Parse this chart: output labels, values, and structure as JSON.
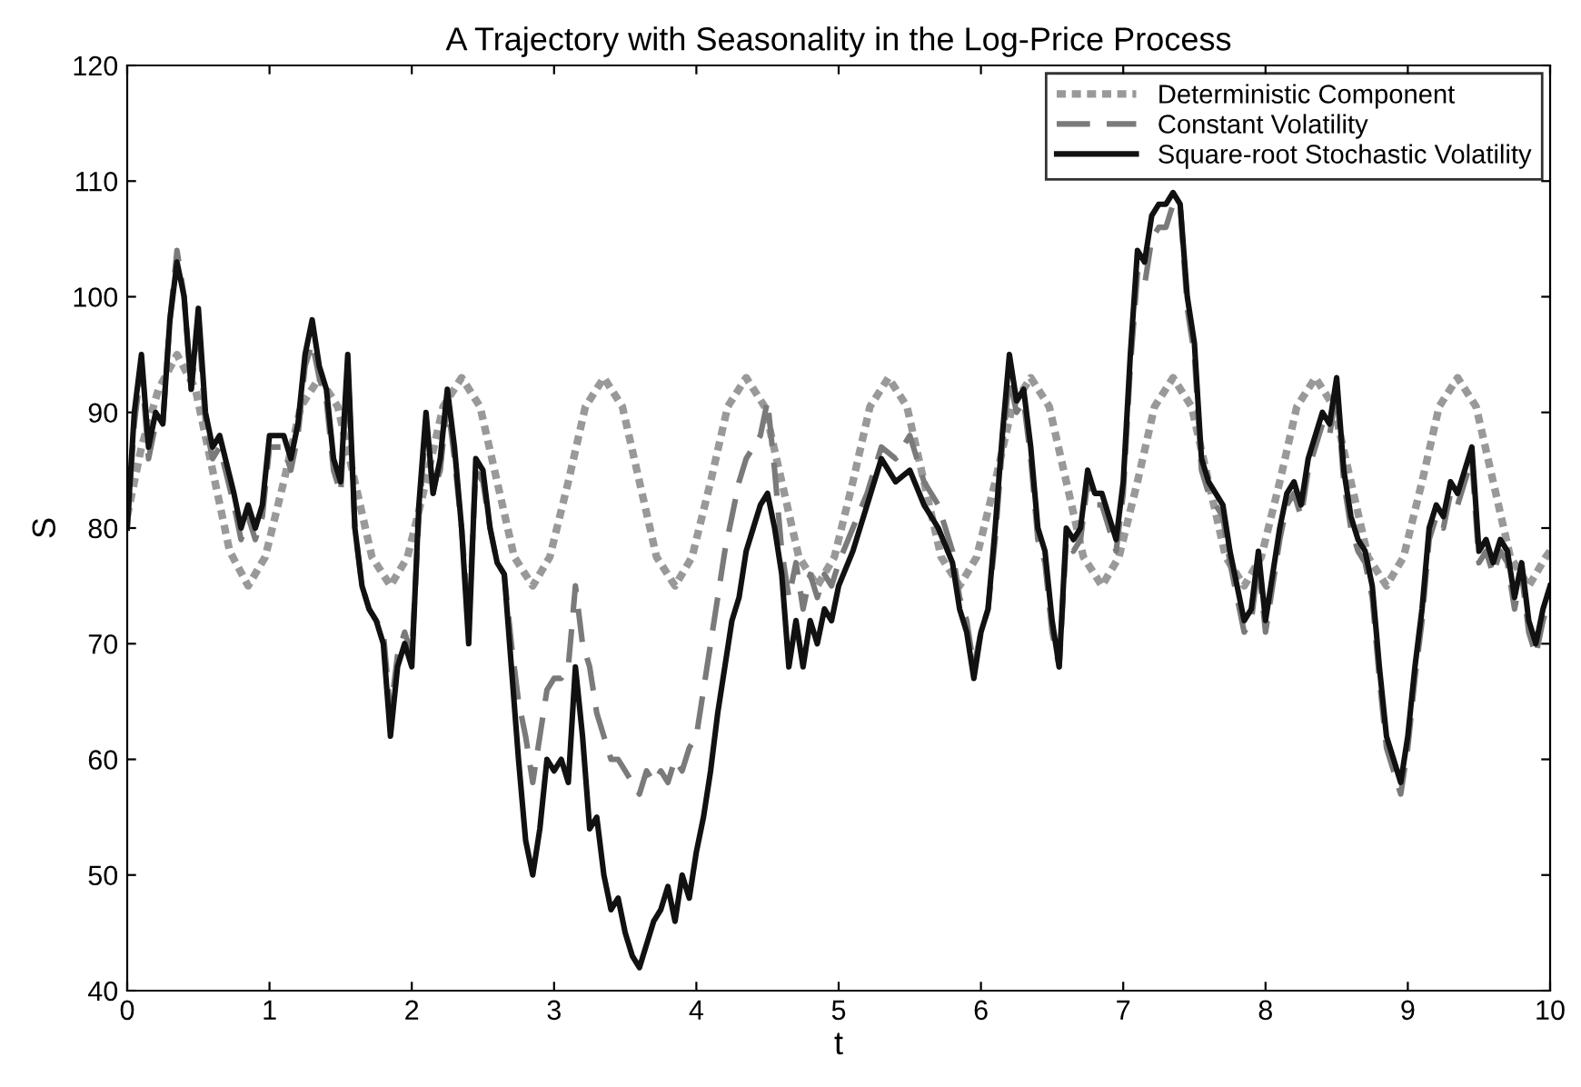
{
  "chart_data": {
    "type": "line",
    "title": "A Trajectory with Seasonality in the Log-Price Process",
    "xlabel": "t",
    "ylabel": "S",
    "xlim": [
      0,
      10
    ],
    "ylim": [
      40,
      120
    ],
    "xticks": [
      0,
      1,
      2,
      3,
      4,
      5,
      6,
      7,
      8,
      9,
      10
    ],
    "yticks": [
      40,
      50,
      60,
      70,
      80,
      90,
      100,
      110,
      120
    ],
    "grid": false,
    "legend": "top right",
    "marker": "none",
    "series": [
      {
        "name": "Deterministic Component",
        "color": "#999999",
        "line_style": "dotted",
        "x": [
          0,
          0.1,
          0.22,
          0.35,
          0.48,
          0.6,
          0.72,
          0.85,
          0.97,
          1.1,
          1.22,
          1.35,
          1.48,
          1.6,
          1.72,
          1.85,
          1.97,
          2.1,
          2.22,
          2.35,
          2.48,
          2.6,
          2.72,
          2.85,
          2.97,
          3.1,
          3.22,
          3.35,
          3.48,
          3.6,
          3.72,
          3.85,
          3.97,
          4.1,
          4.22,
          4.35,
          4.48,
          4.6,
          4.72,
          4.85,
          4.97,
          5.1,
          5.22,
          5.35,
          5.48,
          5.6,
          5.72,
          5.85,
          5.97,
          6.1,
          6.22,
          6.35,
          6.48,
          6.6,
          6.72,
          6.85,
          6.97,
          7.1,
          7.22,
          7.35,
          7.48,
          7.6,
          7.72,
          7.85,
          7.97,
          8.1,
          8.22,
          8.35,
          8.48,
          8.6,
          8.72,
          8.85,
          8.97,
          9.1,
          9.22,
          9.35,
          9.48,
          9.6,
          9.72,
          9.85,
          9.97,
          10
        ],
        "values": [
          81,
          87,
          92,
          95,
          92,
          85,
          78,
          75,
          77.5,
          84,
          90.5,
          93,
          90.5,
          84,
          77.5,
          75,
          77.5,
          84,
          90.5,
          93,
          90.5,
          84,
          77.5,
          75,
          77.5,
          84,
          90.5,
          93,
          90.5,
          84,
          77.5,
          75,
          77.5,
          84,
          90.5,
          93,
          90.5,
          84,
          77.5,
          75,
          77.5,
          84,
          90.5,
          93,
          90.5,
          84,
          77.5,
          75,
          77.5,
          84,
          90.5,
          93,
          90.5,
          84,
          77.5,
          75,
          77.5,
          84,
          90.5,
          93,
          90.5,
          84,
          77.5,
          75,
          77.5,
          84,
          90.5,
          93,
          90.5,
          84,
          77.5,
          75,
          77.5,
          84,
          90.5,
          93,
          90.5,
          84,
          77.5,
          75,
          77.5,
          78
        ]
      },
      {
        "name": "Constant Volatility",
        "color": "#7a7a7a",
        "line_style": "dashed",
        "x": [
          0,
          0.05,
          0.1,
          0.15,
          0.2,
          0.25,
          0.3,
          0.35,
          0.4,
          0.45,
          0.5,
          0.55,
          0.6,
          0.65,
          0.75,
          0.8,
          0.85,
          0.9,
          0.95,
          1.0,
          1.1,
          1.15,
          1.2,
          1.25,
          1.3,
          1.35,
          1.4,
          1.45,
          1.5,
          1.55,
          1.6,
          1.65,
          1.7,
          1.75,
          1.8,
          1.85,
          1.9,
          1.95,
          2.0,
          2.05,
          2.1,
          2.15,
          2.2,
          2.25,
          2.3,
          2.35,
          2.4,
          2.45,
          2.5,
          2.55,
          2.6,
          2.65,
          2.7,
          2.75,
          2.8,
          2.85,
          2.9,
          2.95,
          3.0,
          3.05,
          3.1,
          3.15,
          3.2,
          3.25,
          3.3,
          3.35,
          3.4,
          3.45,
          3.5,
          3.55,
          3.6,
          3.65,
          3.7,
          3.75,
          3.8,
          3.85,
          3.9,
          3.95,
          4.0,
          4.05,
          4.1,
          4.15,
          4.2,
          4.25,
          4.3,
          4.35,
          4.4,
          4.45,
          4.5,
          4.55,
          4.6,
          4.65,
          4.7,
          4.75,
          4.8,
          4.85,
          4.9,
          4.95,
          5.0,
          5.1,
          5.2,
          5.3,
          5.4,
          5.5,
          5.6,
          5.7,
          5.8,
          5.85,
          5.9,
          5.95,
          6.0,
          6.05,
          6.1,
          6.15,
          6.2,
          6.25,
          6.3,
          6.35,
          6.4,
          6.45,
          6.5,
          6.55,
          6.6,
          6.65,
          6.7,
          6.75,
          6.8,
          6.85,
          6.9,
          6.95,
          7.0,
          7.05,
          7.1,
          7.15,
          7.2,
          7.25,
          7.3,
          7.35,
          7.4,
          7.45,
          7.5,
          7.55,
          7.6,
          7.65,
          7.7,
          7.75,
          7.8,
          7.85,
          7.9,
          7.95,
          8.0,
          8.05,
          8.1,
          8.15,
          8.2,
          8.25,
          8.3,
          8.35,
          8.4,
          8.45,
          8.5,
          8.55,
          8.6,
          8.65,
          8.7,
          8.75,
          8.8,
          8.85,
          8.9,
          8.95,
          9.0,
          9.05,
          9.1,
          9.15,
          9.2,
          9.25,
          9.3,
          9.35,
          9.4,
          9.45,
          9.5,
          9.55,
          9.6,
          9.65,
          9.7,
          9.75,
          9.8,
          9.85,
          9.9,
          9.95,
          10
        ],
        "values": [
          80,
          89,
          94,
          86,
          89,
          89,
          98,
          104,
          100,
          92,
          98,
          89,
          86,
          87,
          82,
          79,
          81,
          79,
          81,
          87,
          87,
          85,
          88,
          94,
          96,
          93,
          91,
          85,
          83,
          94,
          80,
          75,
          73,
          72,
          71,
          64,
          69,
          71,
          69,
          81,
          89,
          83,
          85,
          91,
          86,
          80,
          72,
          85,
          84,
          80,
          77,
          76,
          70,
          65,
          62,
          58,
          62,
          66,
          67,
          67,
          68,
          75,
          70,
          68,
          64,
          62,
          60,
          60,
          59,
          58,
          57,
          59,
          58,
          59,
          58,
          60,
          59,
          61,
          62,
          66,
          70,
          74,
          78,
          81,
          84,
          86,
          87,
          88,
          91,
          85,
          78,
          74,
          77,
          73,
          76,
          74,
          76,
          75,
          77,
          80,
          83,
          87,
          86,
          88,
          84,
          82,
          78,
          74,
          72,
          68,
          71,
          73,
          79,
          87,
          93,
          90,
          91,
          86,
          79,
          77,
          71,
          68,
          79,
          78,
          79,
          84,
          82,
          82,
          80,
          78,
          83,
          94,
          102,
          101,
          105,
          106,
          106,
          108,
          108,
          99,
          95,
          85,
          83,
          82,
          81,
          77,
          74,
          71,
          72,
          77,
          71,
          75,
          79,
          82,
          83,
          81,
          85,
          87,
          89,
          88,
          92,
          84,
          80,
          78,
          77,
          74,
          67,
          61,
          59,
          57,
          61,
          67,
          72,
          79,
          81,
          80,
          83,
          82,
          84,
          86,
          77,
          78,
          76,
          78,
          77,
          73,
          76,
          71,
          69,
          72,
          74
        ]
      },
      {
        "name": "Square-root Stochastic Volatility",
        "color": "#111111",
        "line_style": "solid",
        "x": [
          0,
          0.05,
          0.1,
          0.15,
          0.2,
          0.25,
          0.3,
          0.35,
          0.4,
          0.45,
          0.5,
          0.55,
          0.6,
          0.65,
          0.75,
          0.8,
          0.85,
          0.9,
          0.95,
          1.0,
          1.1,
          1.15,
          1.2,
          1.25,
          1.3,
          1.35,
          1.4,
          1.45,
          1.5,
          1.55,
          1.6,
          1.65,
          1.7,
          1.75,
          1.8,
          1.85,
          1.9,
          1.95,
          2.0,
          2.05,
          2.1,
          2.15,
          2.2,
          2.25,
          2.3,
          2.35,
          2.4,
          2.45,
          2.5,
          2.55,
          2.6,
          2.65,
          2.7,
          2.75,
          2.8,
          2.85,
          2.9,
          2.95,
          3.0,
          3.05,
          3.1,
          3.15,
          3.2,
          3.25,
          3.3,
          3.35,
          3.4,
          3.45,
          3.5,
          3.55,
          3.6,
          3.65,
          3.7,
          3.75,
          3.8,
          3.85,
          3.9,
          3.95,
          4.0,
          4.05,
          4.1,
          4.15,
          4.2,
          4.25,
          4.3,
          4.35,
          4.4,
          4.45,
          4.5,
          4.55,
          4.6,
          4.65,
          4.7,
          4.75,
          4.8,
          4.85,
          4.9,
          4.95,
          5.0,
          5.1,
          5.2,
          5.3,
          5.4,
          5.5,
          5.6,
          5.7,
          5.8,
          5.85,
          5.9,
          5.95,
          6.0,
          6.05,
          6.1,
          6.15,
          6.2,
          6.25,
          6.3,
          6.35,
          6.4,
          6.45,
          6.5,
          6.55,
          6.6,
          6.65,
          6.7,
          6.75,
          6.8,
          6.85,
          6.9,
          6.95,
          7.0,
          7.05,
          7.1,
          7.15,
          7.2,
          7.25,
          7.3,
          7.35,
          7.4,
          7.45,
          7.5,
          7.55,
          7.6,
          7.65,
          7.7,
          7.75,
          7.8,
          7.85,
          7.9,
          7.95,
          8.0,
          8.05,
          8.1,
          8.15,
          8.2,
          8.25,
          8.3,
          8.35,
          8.4,
          8.45,
          8.5,
          8.55,
          8.6,
          8.65,
          8.7,
          8.75,
          8.8,
          8.85,
          8.9,
          8.95,
          9.0,
          9.05,
          9.1,
          9.15,
          9.2,
          9.25,
          9.3,
          9.35,
          9.4,
          9.45,
          9.5,
          9.55,
          9.6,
          9.65,
          9.7,
          9.75,
          9.8,
          9.85,
          9.9,
          9.95,
          10
        ],
        "values": [
          80,
          90,
          95,
          87,
          90,
          89,
          98,
          103,
          100,
          92,
          99,
          90,
          87,
          88,
          83,
          80,
          82,
          80,
          82,
          88,
          88,
          86,
          89,
          95,
          98,
          94,
          92,
          86,
          84,
          95,
          80,
          75,
          73,
          72,
          70,
          62,
          68,
          70,
          68,
          82,
          90,
          83,
          86,
          92,
          87,
          80,
          70,
          86,
          85,
          80,
          77,
          76,
          68,
          60,
          53,
          50,
          54,
          60,
          59,
          60,
          58,
          68,
          62,
          54,
          55,
          50,
          47,
          48,
          45,
          43,
          42,
          44,
          46,
          47,
          49,
          46,
          50,
          48,
          52,
          55,
          59,
          64,
          68,
          72,
          74,
          78,
          80,
          82,
          83,
          80,
          76,
          68,
          72,
          68,
          72,
          70,
          73,
          72,
          75,
          78,
          82,
          86,
          84,
          85,
          82,
          80,
          77,
          73,
          71,
          67,
          71,
          73,
          80,
          88,
          95,
          91,
          92,
          87,
          80,
          78,
          72,
          68,
          80,
          79,
          80,
          85,
          83,
          83,
          81,
          79,
          84,
          95,
          104,
          103,
          107,
          108,
          108,
          109,
          108,
          100,
          96,
          86,
          84,
          83,
          82,
          78,
          75,
          72,
          73,
          78,
          72,
          76,
          80,
          83,
          84,
          82,
          86,
          88,
          90,
          89,
          93,
          85,
          81,
          79,
          78,
          75,
          68,
          62,
          60,
          58,
          62,
          68,
          73,
          80,
          82,
          81,
          84,
          83,
          85,
          87,
          78,
          79,
          77,
          79,
          78,
          74,
          77,
          72,
          70,
          73,
          75
        ]
      }
    ]
  }
}
